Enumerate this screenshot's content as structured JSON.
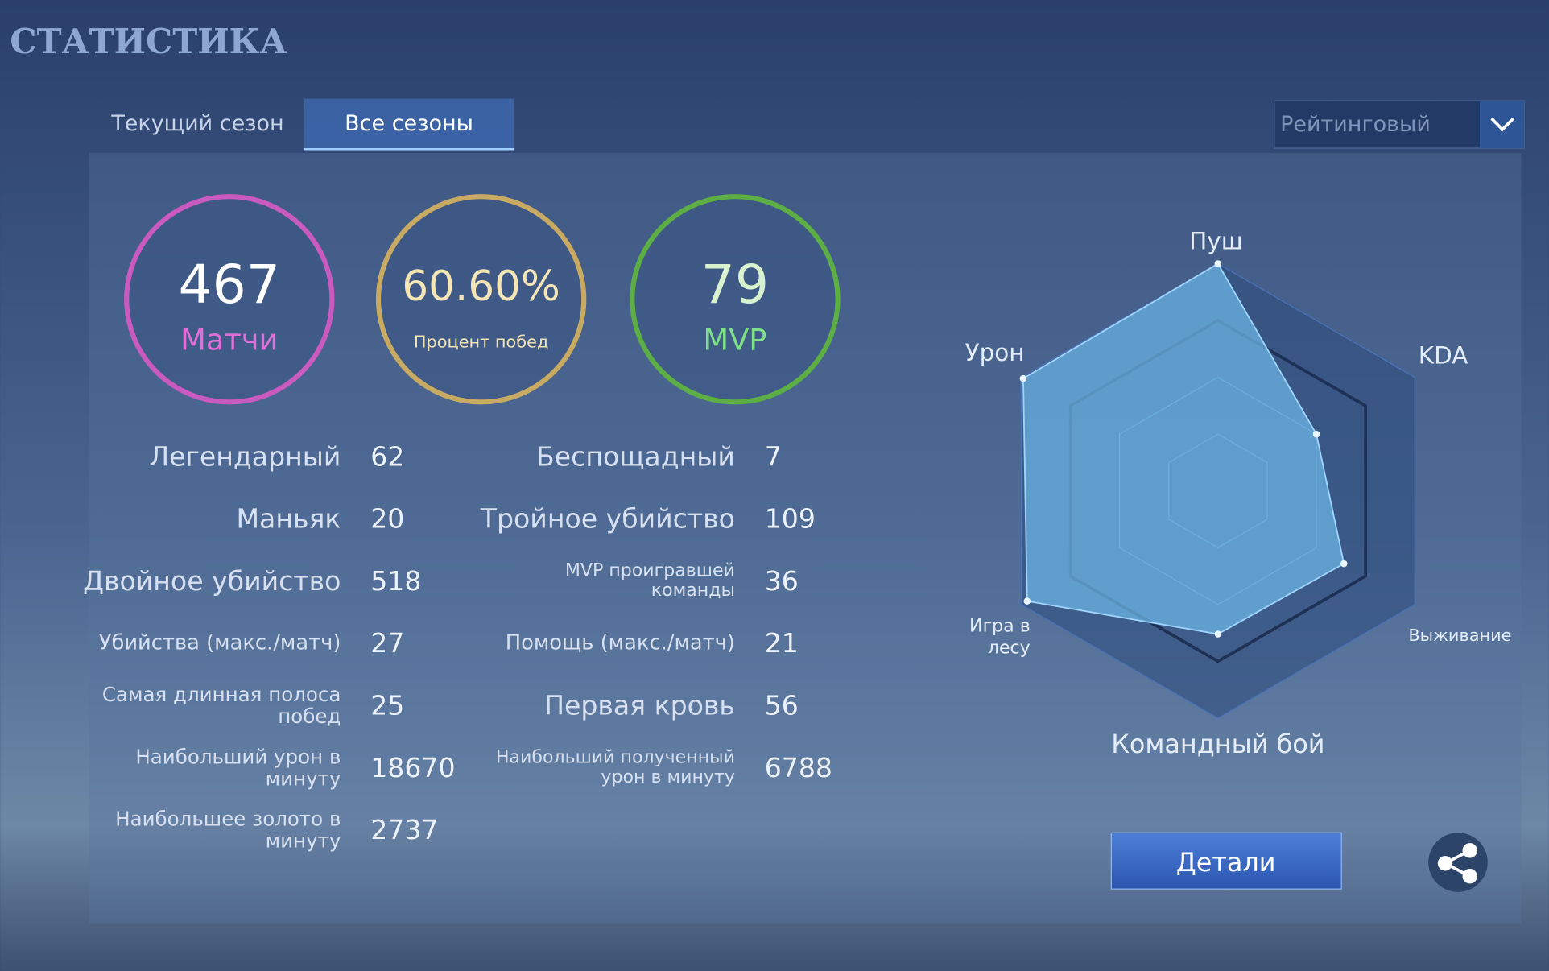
{
  "header": {
    "title": "СТАТИСТИКА"
  },
  "tabs": [
    "Текущий сезон",
    "Все сезоны"
  ],
  "mode_dropdown": "Рейтинговый",
  "summary": [
    {
      "value": "467",
      "label": "Матчи"
    },
    {
      "value": "60.60%",
      "label": "Процент побед"
    },
    {
      "value": "79",
      "label": "MVP"
    }
  ],
  "stats": {
    "left": [
      {
        "label": [
          "Легендарный"
        ],
        "value": "62"
      },
      {
        "label": [
          "Маньяк"
        ],
        "value": "20"
      },
      {
        "label": [
          "Двойное убийство"
        ],
        "value": "518"
      },
      {
        "label": [
          "Убийства (макс./матч)"
        ],
        "value": "27"
      },
      {
        "label": [
          "Самая длинная полоса",
          "побед"
        ],
        "value": "25"
      },
      {
        "label": [
          "Наибольший урон в",
          "минуту"
        ],
        "value": "18670"
      },
      {
        "label": [
          "Наибольшее золото в",
          "минуту"
        ],
        "value": "2737"
      }
    ],
    "right": [
      {
        "label": [
          "Беспощадный"
        ],
        "value": "7"
      },
      {
        "label": [
          "Тройное убийство"
        ],
        "value": "109"
      },
      {
        "label": [
          "MVP проигравшей",
          "команды"
        ],
        "value": "36"
      },
      {
        "label": [
          "Помощь (макс./матч)"
        ],
        "value": "21"
      },
      {
        "label": [
          "Первая кровь"
        ],
        "value": "56"
      },
      {
        "label": [
          "Наибольший полученный",
          "урон в минуту"
        ],
        "value": "6788"
      }
    ]
  },
  "radar": {
    "axes": [
      [
        "Пуш"
      ],
      [
        "KDA"
      ],
      [
        "Выживание"
      ],
      [
        "Командный бой"
      ],
      [
        "Игра в",
        "лесу"
      ],
      [
        "Урон"
      ]
    ],
    "values": [
      100,
      50,
      64,
      63,
      97,
      99
    ],
    "rlim": [
      0,
      100
    ]
  },
  "details_button": "Детали"
}
